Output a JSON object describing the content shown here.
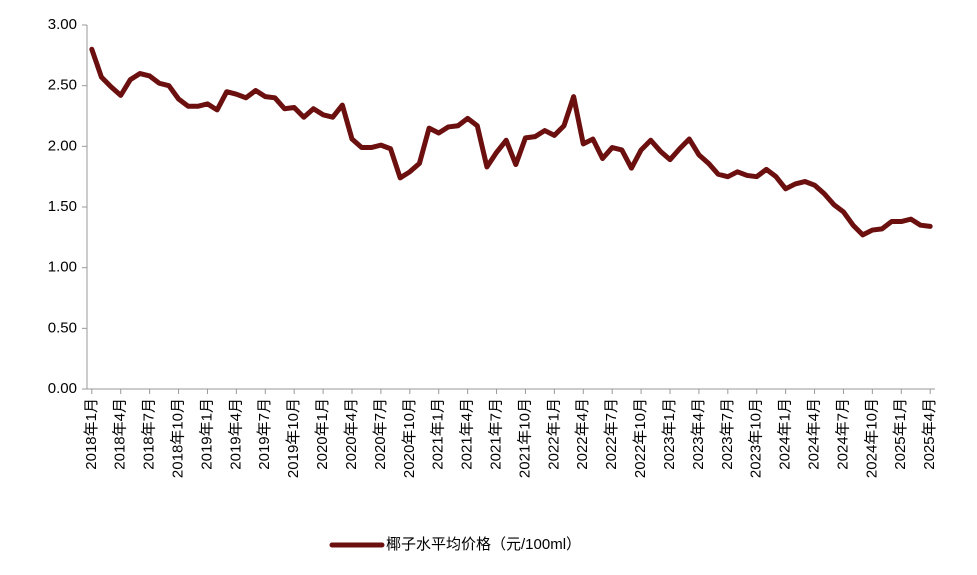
{
  "chart_data": {
    "type": "line",
    "categories": [
      "2018年1月",
      null,
      null,
      "2018年4月",
      null,
      null,
      "2018年7月",
      null,
      null,
      "2018年10月",
      null,
      null,
      "2019年1月",
      null,
      null,
      "2019年4月",
      null,
      null,
      "2019年7月",
      null,
      null,
      "2019年10月",
      null,
      null,
      "2020年1月",
      null,
      null,
      "2020年4月",
      null,
      null,
      "2020年7月",
      null,
      null,
      "2020年10月",
      null,
      null,
      "2021年1月",
      null,
      null,
      "2021年4月",
      null,
      null,
      "2021年7月",
      null,
      null,
      "2021年10月",
      null,
      null,
      "2022年1月",
      null,
      null,
      "2022年4月",
      null,
      null,
      "2022年7月",
      null,
      null,
      "2022年10月",
      null,
      null,
      "2023年1月",
      null,
      null,
      "2023年4月",
      null,
      null,
      "2023年7月",
      null,
      null,
      "2023年10月",
      null,
      null,
      "2024年1月",
      null,
      null,
      "2024年4月",
      null,
      null,
      "2024年7月",
      null,
      null,
      "2024年10月",
      null,
      null,
      "2025年1月",
      null,
      null,
      "2025年4月"
    ],
    "series": [
      {
        "name": "椰子水平均价格（元/100ml）",
        "color": "#6b0f0f",
        "values": [
          2.8,
          2.57,
          2.49,
          2.42,
          2.55,
          2.6,
          2.58,
          2.52,
          2.5,
          2.39,
          2.33,
          2.33,
          2.35,
          2.3,
          2.45,
          2.43,
          2.4,
          2.46,
          2.41,
          2.4,
          2.31,
          2.32,
          2.24,
          2.31,
          2.26,
          2.24,
          2.34,
          2.06,
          1.99,
          1.99,
          2.01,
          1.98,
          1.74,
          1.79,
          1.86,
          2.15,
          2.11,
          2.16,
          2.17,
          2.23,
          2.17,
          1.83,
          1.95,
          2.05,
          1.85,
          2.07,
          2.08,
          2.13,
          2.09,
          2.17,
          2.41,
          2.02,
          2.06,
          1.9,
          1.99,
          1.97,
          1.82,
          1.97,
          2.05,
          1.96,
          1.89,
          1.98,
          2.06,
          1.93,
          1.86,
          1.77,
          1.75,
          1.79,
          1.76,
          1.75,
          1.81,
          1.75,
          1.65,
          1.69,
          1.71,
          1.68,
          1.61,
          1.52,
          1.46,
          1.35,
          1.27,
          1.31,
          1.32,
          1.38,
          1.38,
          1.4,
          1.35,
          1.34
        ]
      }
    ],
    "ylim": [
      0,
      3
    ],
    "yticks": [
      {
        "value": 0,
        "label": "0.00"
      },
      {
        "value": 0.5,
        "label": "0.50"
      },
      {
        "value": 1,
        "label": "1.00"
      },
      {
        "value": 1.5,
        "label": "1.50"
      },
      {
        "value": 2,
        "label": "2.00"
      },
      {
        "value": 2.5,
        "label": "2.50"
      },
      {
        "value": 3,
        "label": "3.00"
      }
    ],
    "grid": false,
    "legend": "bottom"
  }
}
